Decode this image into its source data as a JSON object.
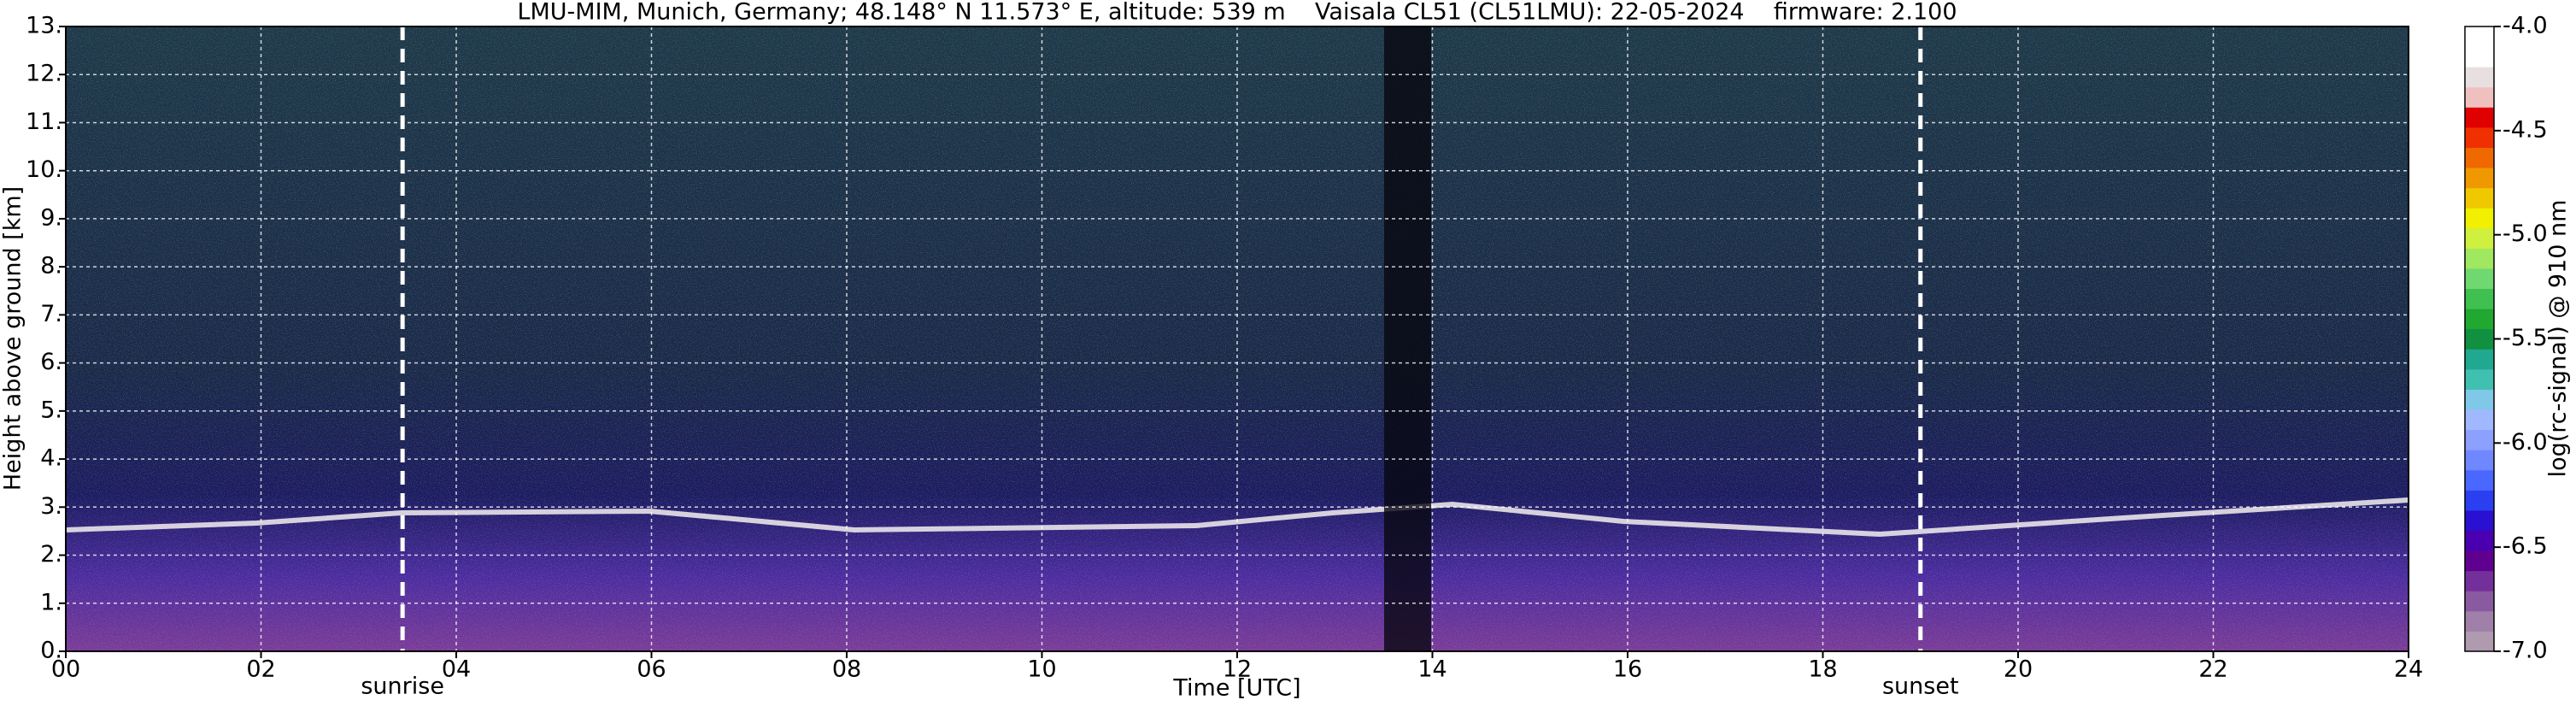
{
  "chart_data": {
    "type": "heatmap",
    "title": "LMU-MIM, Munich, Germany; 48.148° N 11.573° E, altitude: 539 m    Vaisala CL51 (CL51LMU): 22-05-2024    firmware: 2.100",
    "xlabel": "Time [UTC]",
    "ylabel": "Height above ground [km]",
    "xlim": [
      0,
      24
    ],
    "xticks": [
      {
        "value": 0,
        "label": "00"
      },
      {
        "value": 2,
        "label": "02"
      },
      {
        "value": 4,
        "label": "04"
      },
      {
        "value": 6,
        "label": "06"
      },
      {
        "value": 8,
        "label": "08"
      },
      {
        "value": 10,
        "label": "10"
      },
      {
        "value": 12,
        "label": "12"
      },
      {
        "value": 14,
        "label": "14"
      },
      {
        "value": 16,
        "label": "16"
      },
      {
        "value": 18,
        "label": "18"
      },
      {
        "value": 20,
        "label": "20"
      },
      {
        "value": 22,
        "label": "22"
      },
      {
        "value": 24,
        "label": "24"
      }
    ],
    "ylim": [
      0,
      13
    ],
    "yticks": [
      {
        "value": 0,
        "label": "0."
      },
      {
        "value": 1,
        "label": "1."
      },
      {
        "value": 2,
        "label": "2."
      },
      {
        "value": 3,
        "label": "3."
      },
      {
        "value": 4,
        "label": "4."
      },
      {
        "value": 5,
        "label": "5."
      },
      {
        "value": 6,
        "label": "6."
      },
      {
        "value": 7,
        "label": "7."
      },
      {
        "value": 8,
        "label": "8."
      },
      {
        "value": 9,
        "label": "9."
      },
      {
        "value": 10,
        "label": "10."
      },
      {
        "value": 11,
        "label": "11."
      },
      {
        "value": 12,
        "label": "12."
      },
      {
        "value": 13,
        "label": "13."
      }
    ],
    "grid": true,
    "annotations": [
      {
        "x": 3.45,
        "label": "sunrise"
      },
      {
        "x": 19.0,
        "label": "sunset"
      }
    ],
    "colorbar": {
      "label": "log(rc-signal) @ 910 nm",
      "lim": [
        -7,
        -4
      ],
      "ticks": [
        {
          "value": -7,
          "label": "-7.0"
        },
        {
          "value": -6.5,
          "label": "-6.5"
        },
        {
          "value": -6,
          "label": "-6.0"
        },
        {
          "value": -5.5,
          "label": "-5.5"
        },
        {
          "value": -5,
          "label": "-5.0"
        },
        {
          "value": -4.5,
          "label": "-4.5"
        },
        {
          "value": -4,
          "label": "-4.0"
        }
      ],
      "colors": [
        "#b09ab0",
        "#a080a8",
        "#8a5aa0",
        "#74309a",
        "#600090",
        "#4a00b0",
        "#2a10d0",
        "#2a40f0",
        "#4a68ff",
        "#7088ff",
        "#8ca0ff",
        "#a0b8ff",
        "#80c8e8",
        "#40c0b0",
        "#20a890",
        "#109040",
        "#20a830",
        "#40c050",
        "#70d870",
        "#a0e860",
        "#d0f040",
        "#f0f000",
        "#f0c800",
        "#f09800",
        "#f06800",
        "#f03000",
        "#e00000",
        "#f0c0c0",
        "#e8e0e0",
        "#ffffff",
        "#ffffff"
      ]
    }
  }
}
